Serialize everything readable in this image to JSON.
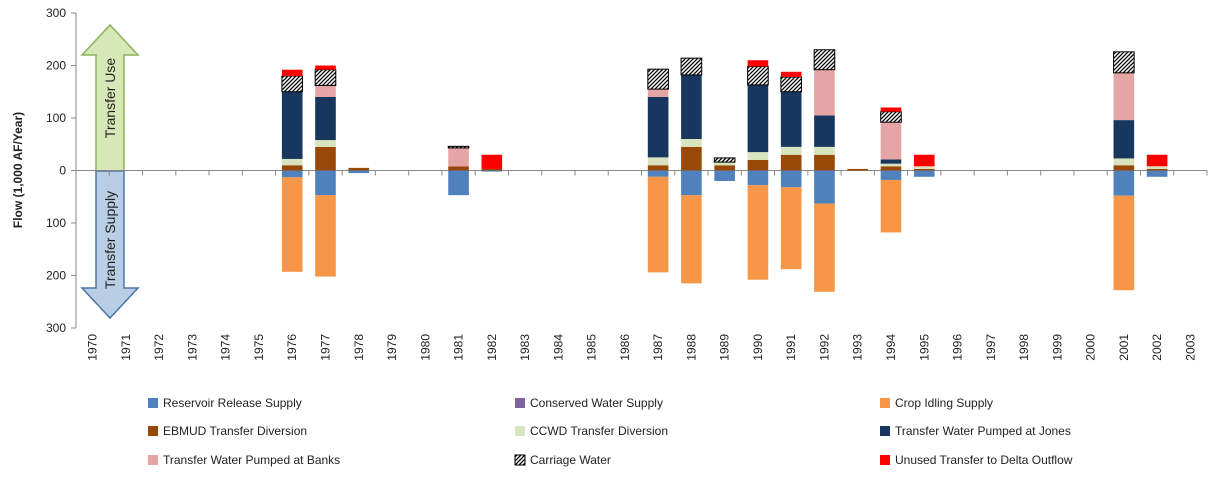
{
  "chart_data": {
    "type": "stacked-bar",
    "y_label": "Flow (1,000 AF/Year)",
    "annotations": [
      "Transfer Use",
      "Transfer Supply"
    ],
    "categories": [
      "1970",
      "1971",
      "1972",
      "1973",
      "1974",
      "1975",
      "1976",
      "1977",
      "1978",
      "1979",
      "1980",
      "1981",
      "1982",
      "1983",
      "1984",
      "1985",
      "1986",
      "1987",
      "1988",
      "1989",
      "1990",
      "1991",
      "1992",
      "1993",
      "1994",
      "1995",
      "1996",
      "1997",
      "1998",
      "1999",
      "2000",
      "2001",
      "2002",
      "2003"
    ],
    "ylim": [
      -300,
      300
    ],
    "yticks": [
      300,
      200,
      100,
      0,
      {
        "value": -100,
        "label": "100"
      },
      {
        "value": -200,
        "label": "200"
      },
      {
        "value": -300,
        "label": "300"
      }
    ],
    "series": [
      {
        "name": "Reservoir Release Supply",
        "color": "#4f81bd",
        "values": [
          0,
          0,
          0,
          0,
          0,
          0,
          -13,
          -47,
          -5,
          0,
          0,
          -47,
          -2,
          0,
          0,
          0,
          0,
          -12,
          -47,
          -20,
          -28,
          -32,
          -63,
          0,
          -18,
          -12,
          0,
          0,
          0,
          0,
          0,
          -48,
          -12,
          0
        ]
      },
      {
        "name": "Conserved Water Supply",
        "color": "#8064a2",
        "values": [
          0,
          0,
          0,
          0,
          0,
          0,
          0,
          0,
          0,
          0,
          0,
          0,
          0,
          0,
          0,
          0,
          0,
          0,
          0,
          0,
          0,
          0,
          0,
          0,
          0,
          0,
          0,
          0,
          0,
          0,
          0,
          0,
          0,
          0
        ]
      },
      {
        "name": "Crop Idling Supply",
        "color": "#f79646",
        "values": [
          0,
          0,
          0,
          0,
          0,
          0,
          -180,
          -155,
          0,
          0,
          0,
          0,
          0,
          0,
          0,
          0,
          0,
          -182,
          -168,
          0,
          -180,
          -156,
          -168,
          0,
          -100,
          0,
          0,
          0,
          0,
          0,
          0,
          -180,
          0,
          0
        ]
      },
      {
        "name": "EBMUD Transfer Diversion",
        "color": "#984807",
        "values": [
          0,
          0,
          0,
          0,
          0,
          0,
          10,
          45,
          5,
          0,
          0,
          8,
          3,
          0,
          0,
          0,
          0,
          10,
          45,
          10,
          20,
          30,
          30,
          3,
          8,
          3,
          0,
          0,
          0,
          0,
          0,
          10,
          3,
          0
        ]
      },
      {
        "name": "CCWD Transfer Diversion",
        "color": "#d7e4bd",
        "values": [
          0,
          0,
          0,
          0,
          0,
          0,
          12,
          13,
          0,
          0,
          0,
          0,
          0,
          0,
          0,
          0,
          0,
          15,
          15,
          6,
          15,
          15,
          15,
          0,
          5,
          5,
          0,
          0,
          0,
          0,
          0,
          13,
          5,
          0
        ]
      },
      {
        "name": "Transfer Water Pumped at Jones",
        "color": "#17375e",
        "values": [
          0,
          0,
          0,
          0,
          0,
          0,
          128,
          82,
          0,
          0,
          0,
          0,
          0,
          0,
          0,
          0,
          0,
          115,
          122,
          0,
          128,
          105,
          60,
          0,
          8,
          0,
          0,
          0,
          0,
          0,
          0,
          73,
          0,
          0
        ]
      },
      {
        "name": "Transfer Water Pumped at Banks",
        "color": "#e6a5a5",
        "values": [
          0,
          0,
          0,
          0,
          0,
          0,
          0,
          22,
          0,
          0,
          0,
          35,
          0,
          0,
          0,
          0,
          0,
          15,
          0,
          0,
          0,
          0,
          87,
          0,
          71,
          0,
          0,
          0,
          0,
          0,
          0,
          90,
          0,
          0
        ]
      },
      {
        "name": "Carriage Water",
        "color": "#000000",
        "hatch": true,
        "values": [
          0,
          0,
          0,
          0,
          0,
          0,
          30,
          30,
          0,
          0,
          0,
          3,
          0,
          0,
          0,
          0,
          0,
          38,
          32,
          8,
          35,
          28,
          38,
          0,
          20,
          0,
          0,
          0,
          0,
          0,
          0,
          40,
          0,
          0
        ]
      },
      {
        "name": "Unused Transfer to Delta Outflow",
        "color": "#ff0000",
        "values": [
          0,
          0,
          0,
          0,
          0,
          0,
          12,
          8,
          0,
          0,
          0,
          0,
          27,
          0,
          0,
          0,
          0,
          0,
          0,
          0,
          12,
          10,
          0,
          0,
          8,
          22,
          0,
          0,
          0,
          0,
          0,
          0,
          22,
          0
        ]
      }
    ]
  }
}
